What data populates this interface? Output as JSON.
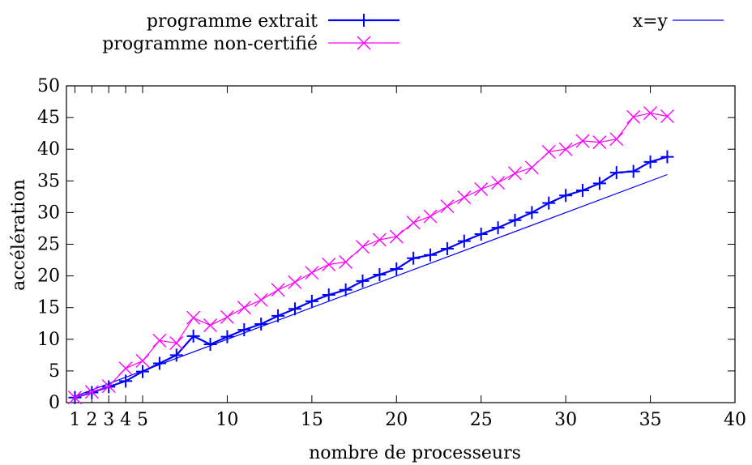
{
  "chart_data": {
    "type": "line",
    "xlabel": "nombre de processeurs",
    "ylabel": "accélération",
    "xlim": [
      0.5,
      40
    ],
    "ylim": [
      0,
      50
    ],
    "x_ticks": [
      1,
      2,
      3,
      4,
      5,
      10,
      15,
      20,
      25,
      30,
      35,
      40
    ],
    "y_ticks": [
      0,
      5,
      10,
      15,
      20,
      25,
      30,
      35,
      40,
      45,
      50
    ],
    "grid": false,
    "legend_placement": "top",
    "series": [
      {
        "name": "programme extrait",
        "color": "#0000ff",
        "marker": "plus",
        "x": [
          1,
          2,
          3,
          4,
          5,
          6,
          7,
          8,
          9,
          10,
          11,
          12,
          13,
          14,
          15,
          16,
          17,
          18,
          19,
          20,
          21,
          22,
          23,
          24,
          25,
          26,
          27,
          28,
          29,
          30,
          31,
          32,
          33,
          34,
          35,
          36
        ],
        "y": [
          0.8,
          1.6,
          2.5,
          3.4,
          4.9,
          6.2,
          7.5,
          10.5,
          9.2,
          10.4,
          11.5,
          12.4,
          13.7,
          14.8,
          16.0,
          17.0,
          17.8,
          19.2,
          20.2,
          21.1,
          22.8,
          23.3,
          24.3,
          25.5,
          26.6,
          27.6,
          28.8,
          30.0,
          31.5,
          32.7,
          33.5,
          34.6,
          36.3,
          36.5,
          38.0,
          38.8
        ]
      },
      {
        "name": "programme non-certifié",
        "color": "#ff00ff",
        "marker": "cross",
        "x": [
          1,
          2,
          3,
          4,
          5,
          6,
          7,
          8,
          9,
          10,
          11,
          12,
          13,
          14,
          15,
          16,
          17,
          18,
          19,
          20,
          21,
          22,
          23,
          24,
          25,
          26,
          27,
          28,
          29,
          30,
          31,
          32,
          33,
          34,
          35,
          36
        ],
        "y": [
          0.8,
          1.7,
          2.6,
          5.4,
          6.6,
          9.8,
          9.4,
          13.4,
          12.2,
          13.5,
          15.0,
          16.2,
          17.8,
          19.0,
          20.5,
          21.8,
          22.2,
          24.6,
          25.7,
          26.2,
          28.4,
          29.4,
          31.0,
          32.4,
          33.7,
          34.7,
          36.2,
          37.1,
          39.6,
          40.0,
          41.3,
          41.1,
          41.6,
          45.1,
          45.7,
          45.2
        ]
      },
      {
        "name": "x=y",
        "color": "#0000ff",
        "marker": "none",
        "x": [
          1,
          36
        ],
        "y": [
          1,
          36
        ]
      }
    ]
  }
}
